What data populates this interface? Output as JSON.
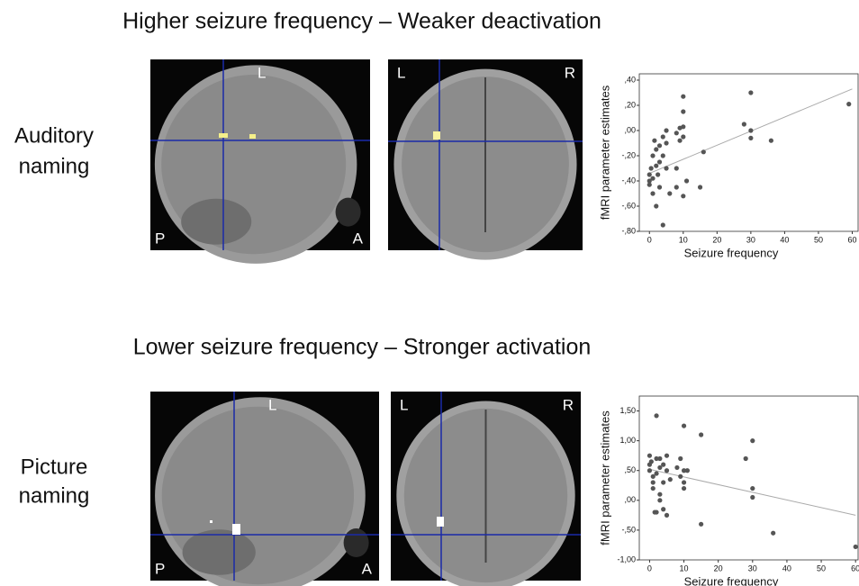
{
  "rows": [
    {
      "heading": "Higher seizure frequency – Weaker deactivation",
      "task": [
        "Auditory",
        "naming"
      ],
      "sagittal": {
        "top": "L",
        "left": "P",
        "right": "A"
      },
      "coronal": {
        "left": "L",
        "right": "R"
      }
    },
    {
      "heading": "Lower seizure frequency – Stronger activation",
      "task": [
        "Picture",
        "naming"
      ],
      "sagittal": {
        "top": "L",
        "left": "P",
        "right": "A"
      },
      "coronal": {
        "left": "L",
        "right": "R"
      }
    }
  ],
  "chart_data": [
    {
      "type": "scatter",
      "x_label": "Seizure frequency",
      "y_label": "fMRI parameter estimates",
      "color": "#555555",
      "fit_color": "#aaaaaa",
      "x": [
        0,
        0,
        0,
        0.5,
        1,
        1,
        1,
        1.5,
        2,
        2,
        2,
        2.5,
        3,
        3,
        3,
        4,
        4,
        4,
        5,
        5,
        5,
        6,
        8,
        8,
        8,
        9,
        9,
        10,
        10,
        10,
        10,
        10,
        11,
        15,
        16,
        28,
        30,
        30,
        30,
        36,
        59
      ],
      "values": [
        -0.35,
        -0.4,
        -0.43,
        -0.3,
        -0.2,
        -0.38,
        -0.5,
        -0.08,
        -0.15,
        -0.28,
        -0.6,
        -0.35,
        -0.12,
        -0.25,
        -0.45,
        -0.2,
        -0.05,
        -0.75,
        -0.3,
        -0.1,
        0.0,
        -0.5,
        -0.02,
        -0.3,
        -0.45,
        -0.08,
        0.02,
        0.27,
        0.15,
        0.03,
        -0.05,
        -0.52,
        -0.4,
        -0.45,
        -0.17,
        0.05,
        0.3,
        0.0,
        -0.06,
        -0.08,
        0.21
      ],
      "fit": {
        "x": [
          0,
          60
        ],
        "values": [
          -0.34,
          0.33
        ]
      },
      "xlim": [
        -3,
        62
      ],
      "ylim": [
        -0.8,
        0.45
      ],
      "xticks": [
        0,
        10,
        20,
        30,
        40,
        50,
        60
      ],
      "yticks": [
        {
          "value": -0.8,
          "label": "-,80"
        },
        {
          "value": -0.6,
          "label": "-,60"
        },
        {
          "value": -0.4,
          "label": "-,40"
        },
        {
          "value": -0.2,
          "label": "-,20"
        },
        {
          "value": 0,
          "label": ",00"
        },
        {
          "value": 0.2,
          "label": ",20"
        },
        {
          "value": 0.4,
          "label": ",40"
        }
      ]
    },
    {
      "type": "scatter",
      "x_label": "Seizure frequency",
      "y_label": "fMRI parameter estimates",
      "color": "#555555",
      "fit_color": "#aaaaaa",
      "x": [
        0,
        0,
        0,
        0.5,
        1,
        1,
        1,
        1.5,
        2,
        2,
        2,
        2,
        3,
        3,
        3,
        3,
        4,
        4,
        4,
        5,
        5,
        5,
        6,
        8,
        9,
        9,
        10,
        10,
        10,
        10,
        11,
        15,
        15,
        28,
        30,
        30,
        30,
        36,
        60
      ],
      "values": [
        0.75,
        0.6,
        0.5,
        0.65,
        0.4,
        0.3,
        0.2,
        -0.2,
        1.42,
        0.7,
        0.45,
        -0.2,
        0.55,
        0.1,
        0.0,
        0.7,
        0.3,
        -0.15,
        0.6,
        0.75,
        0.5,
        -0.25,
        0.35,
        0.55,
        0.7,
        0.4,
        1.25,
        0.5,
        0.3,
        0.2,
        0.5,
        1.1,
        -0.4,
        0.7,
        1.0,
        0.2,
        0.05,
        -0.55,
        -0.78
      ],
      "fit": {
        "x": [
          0,
          60
        ],
        "values": [
          0.52,
          -0.25
        ]
      },
      "xlim": [
        -3,
        61
      ],
      "ylim": [
        -1.0,
        1.75
      ],
      "xticks": [
        0,
        10,
        20,
        30,
        40,
        50,
        60
      ],
      "yticks": [
        {
          "value": -1,
          "label": "-1,00"
        },
        {
          "value": -0.5,
          "label": "-,50"
        },
        {
          "value": 0,
          "label": ",00"
        },
        {
          "value": 0.5,
          "label": ",50"
        },
        {
          "value": 1,
          "label": "1,00"
        },
        {
          "value": 1.5,
          "label": "1,50"
        }
      ]
    }
  ]
}
